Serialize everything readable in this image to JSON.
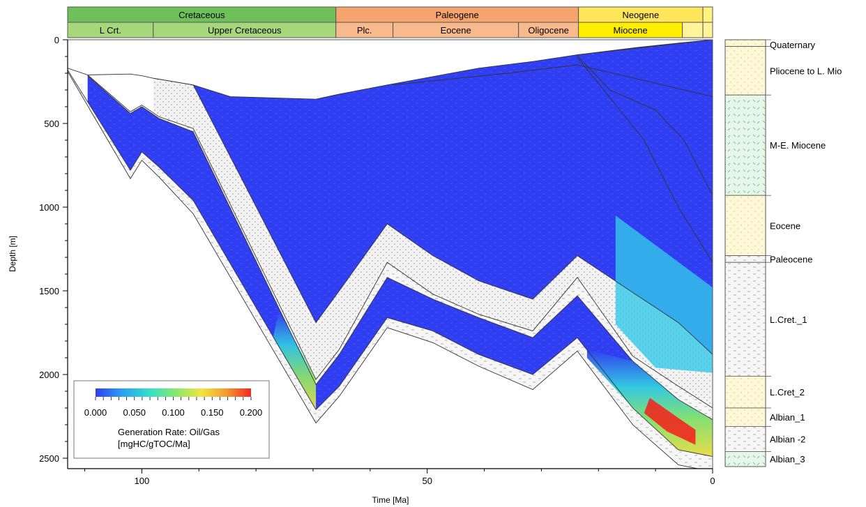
{
  "chart_data": {
    "type": "area",
    "title": "",
    "xlabel": "Time [Ma]",
    "ylabel": "Depth [m]",
    "xlim": [
      113,
      0
    ],
    "ylim": [
      0,
      2550
    ],
    "x_ticks": [
      {
        "value": 100,
        "label": "100"
      },
      {
        "value": 50,
        "label": "50"
      },
      {
        "value": 0,
        "label": "0"
      }
    ],
    "y_ticks": [
      {
        "value": 0,
        "label": "0"
      },
      {
        "value": 500,
        "label": "500"
      },
      {
        "value": 1000,
        "label": "1000"
      },
      {
        "value": 1500,
        "label": "1500"
      },
      {
        "value": 2000,
        "label": "2000"
      },
      {
        "value": 2500,
        "label": "2500"
      }
    ],
    "periods": [
      {
        "label": "Cretaceous",
        "start": 113,
        "end": 66,
        "color": "#6fc05a"
      },
      {
        "label": "Paleogene",
        "start": 66,
        "end": 23.5,
        "color": "#f5a46d"
      },
      {
        "label": "Neogene",
        "start": 23.5,
        "end": 1.7,
        "color": "#ffe55a"
      },
      {
        "label": "",
        "start": 1.7,
        "end": 0,
        "color": "#fff27f"
      }
    ],
    "epochs": [
      {
        "label": "L Crt.",
        "start": 113,
        "end": 98,
        "color": "#a6d87b"
      },
      {
        "label": "Upper Cretaceous",
        "start": 98,
        "end": 66,
        "color": "#a6d87b"
      },
      {
        "label": "Plc.",
        "start": 66,
        "end": 56,
        "color": "#f8b98c"
      },
      {
        "label": "Eocene",
        "start": 56,
        "end": 34,
        "color": "#f8b98c"
      },
      {
        "label": "Oligocene",
        "start": 34,
        "end": 23.5,
        "color": "#f8b98c"
      },
      {
        "label": "Miocene",
        "start": 23.5,
        "end": 5.3,
        "color": "#ffee00"
      },
      {
        "label": "",
        "start": 5.3,
        "end": 1.7,
        "color": "#fff49a"
      },
      {
        "label": "",
        "start": 1.7,
        "end": 0,
        "color": "#fff49a"
      }
    ],
    "horizons": [
      {
        "name": "h0",
        "x": [
          23.7,
          0
        ],
        "y": [
          90,
          0
        ]
      },
      {
        "name": "h1",
        "x": [
          113,
          109.5,
          102,
          100,
          98,
          91,
          84.5,
          69.5,
          65.4,
          57,
          41,
          31.5,
          23.7,
          13,
          6,
          0
        ],
        "y": [
          170,
          210,
          205,
          215,
          230,
          270,
          340,
          355,
          325,
          270,
          170,
          130,
          90,
          45,
          20,
          0
        ]
      },
      {
        "name": "h2",
        "x": [
          56,
          36,
          23.7,
          0
        ],
        "y": [
          270,
          200,
          150,
          340
        ]
      },
      {
        "name": "h3",
        "x": [
          23.7,
          18,
          10,
          5,
          0
        ],
        "y": [
          95,
          300,
          420,
          600,
          930
        ]
      },
      {
        "name": "h4",
        "x": [
          23.7,
          12,
          6,
          0
        ],
        "y": [
          105,
          600,
          1000,
          1330
        ]
      },
      {
        "name": "h5",
        "x": [
          98,
          91,
          69.5,
          65.4,
          57,
          49,
          41,
          31.5,
          23.7,
          14,
          6,
          0
        ],
        "y": [
          230,
          270,
          1690,
          1500,
          1100,
          1290,
          1440,
          1550,
          1290,
          1510,
          1690,
          1880
        ]
      },
      {
        "name": "h6",
        "x": [
          109.5,
          102,
          100,
          97,
          91,
          69.5,
          65.4,
          57,
          49,
          41,
          31.5,
          23.7,
          14,
          6,
          0
        ],
        "y": [
          210,
          430,
          390,
          460,
          530,
          2030,
          1850,
          1330,
          1520,
          1640,
          1740,
          1420,
          1890,
          2070,
          2200
        ]
      },
      {
        "name": "h7",
        "x": [
          109.5,
          102,
          100,
          97,
          91,
          69.5,
          65.4,
          57,
          49,
          41,
          31.5,
          23.7,
          14,
          6,
          0
        ],
        "y": [
          215,
          440,
          400,
          470,
          550,
          2060,
          1880,
          1420,
          1550,
          1660,
          1780,
          1530,
          1920,
          2150,
          2270
        ]
      },
      {
        "name": "h8",
        "x": [
          113,
          102,
          100,
          97,
          91,
          69.5,
          65.4,
          57,
          49,
          41,
          31.5,
          23.7,
          14,
          6,
          0
        ],
        "y": [
          180,
          780,
          670,
          760,
          960,
          2210,
          2070,
          1660,
          1740,
          1880,
          2000,
          1780,
          2200,
          2450,
          2490
        ]
      },
      {
        "name": "h9",
        "x": [
          113,
          102,
          100,
          97,
          91,
          69.5,
          65.4,
          57,
          49,
          41,
          31.5,
          23.7,
          14,
          6,
          0
        ],
        "y": [
          190,
          830,
          720,
          820,
          1040,
          2290,
          2130,
          1720,
          1810,
          1950,
          2090,
          1860,
          2300,
          2540,
          2580
        ]
      }
    ],
    "colorbar": {
      "min": 0.0,
      "max": 0.2,
      "tick_labels": [
        "0.000",
        "0.050",
        "0.100",
        "0.150",
        "0.200"
      ],
      "label_line1": "Generation Rate: Oil/Gas",
      "label_line2": "[mgHC/gTOC/Ma]",
      "colors": [
        "#2f3ef0",
        "#2aa0f0",
        "#33e0c8",
        "#8ae86a",
        "#f0e640",
        "#f59a30",
        "#f02820"
      ]
    },
    "strat_column": [
      {
        "label": "Quaternary",
        "top": 0,
        "base": 40,
        "color": "#fff8d8"
      },
      {
        "label": "Pliocene to L. Mio",
        "top": 40,
        "base": 330,
        "color": "#fff8d8"
      },
      {
        "label": "M-E. Miocene",
        "top": 330,
        "base": 930,
        "color": "#e6f7ea"
      },
      {
        "label": "Eocene",
        "top": 930,
        "base": 1290,
        "color": "#fff8d8"
      },
      {
        "label": "Paleocene",
        "top": 1290,
        "base": 1330,
        "color": "#f4f4f4"
      },
      {
        "label": "L.Cret._1",
        "top": 1330,
        "base": 2010,
        "color": "#f4f4f4"
      },
      {
        "label": "L.Cret_2",
        "top": 2010,
        "base": 2200,
        "color": "#fff8d8"
      },
      {
        "label": "Albian_1",
        "top": 2200,
        "base": 2310,
        "color": "#fff8d8"
      },
      {
        "label": "Albian -2",
        "top": 2310,
        "base": 2460,
        "color": "#f4f4f4"
      },
      {
        "label": "Albian_3",
        "top": 2460,
        "base": 2550,
        "color": "#d8f0d0"
      }
    ]
  }
}
